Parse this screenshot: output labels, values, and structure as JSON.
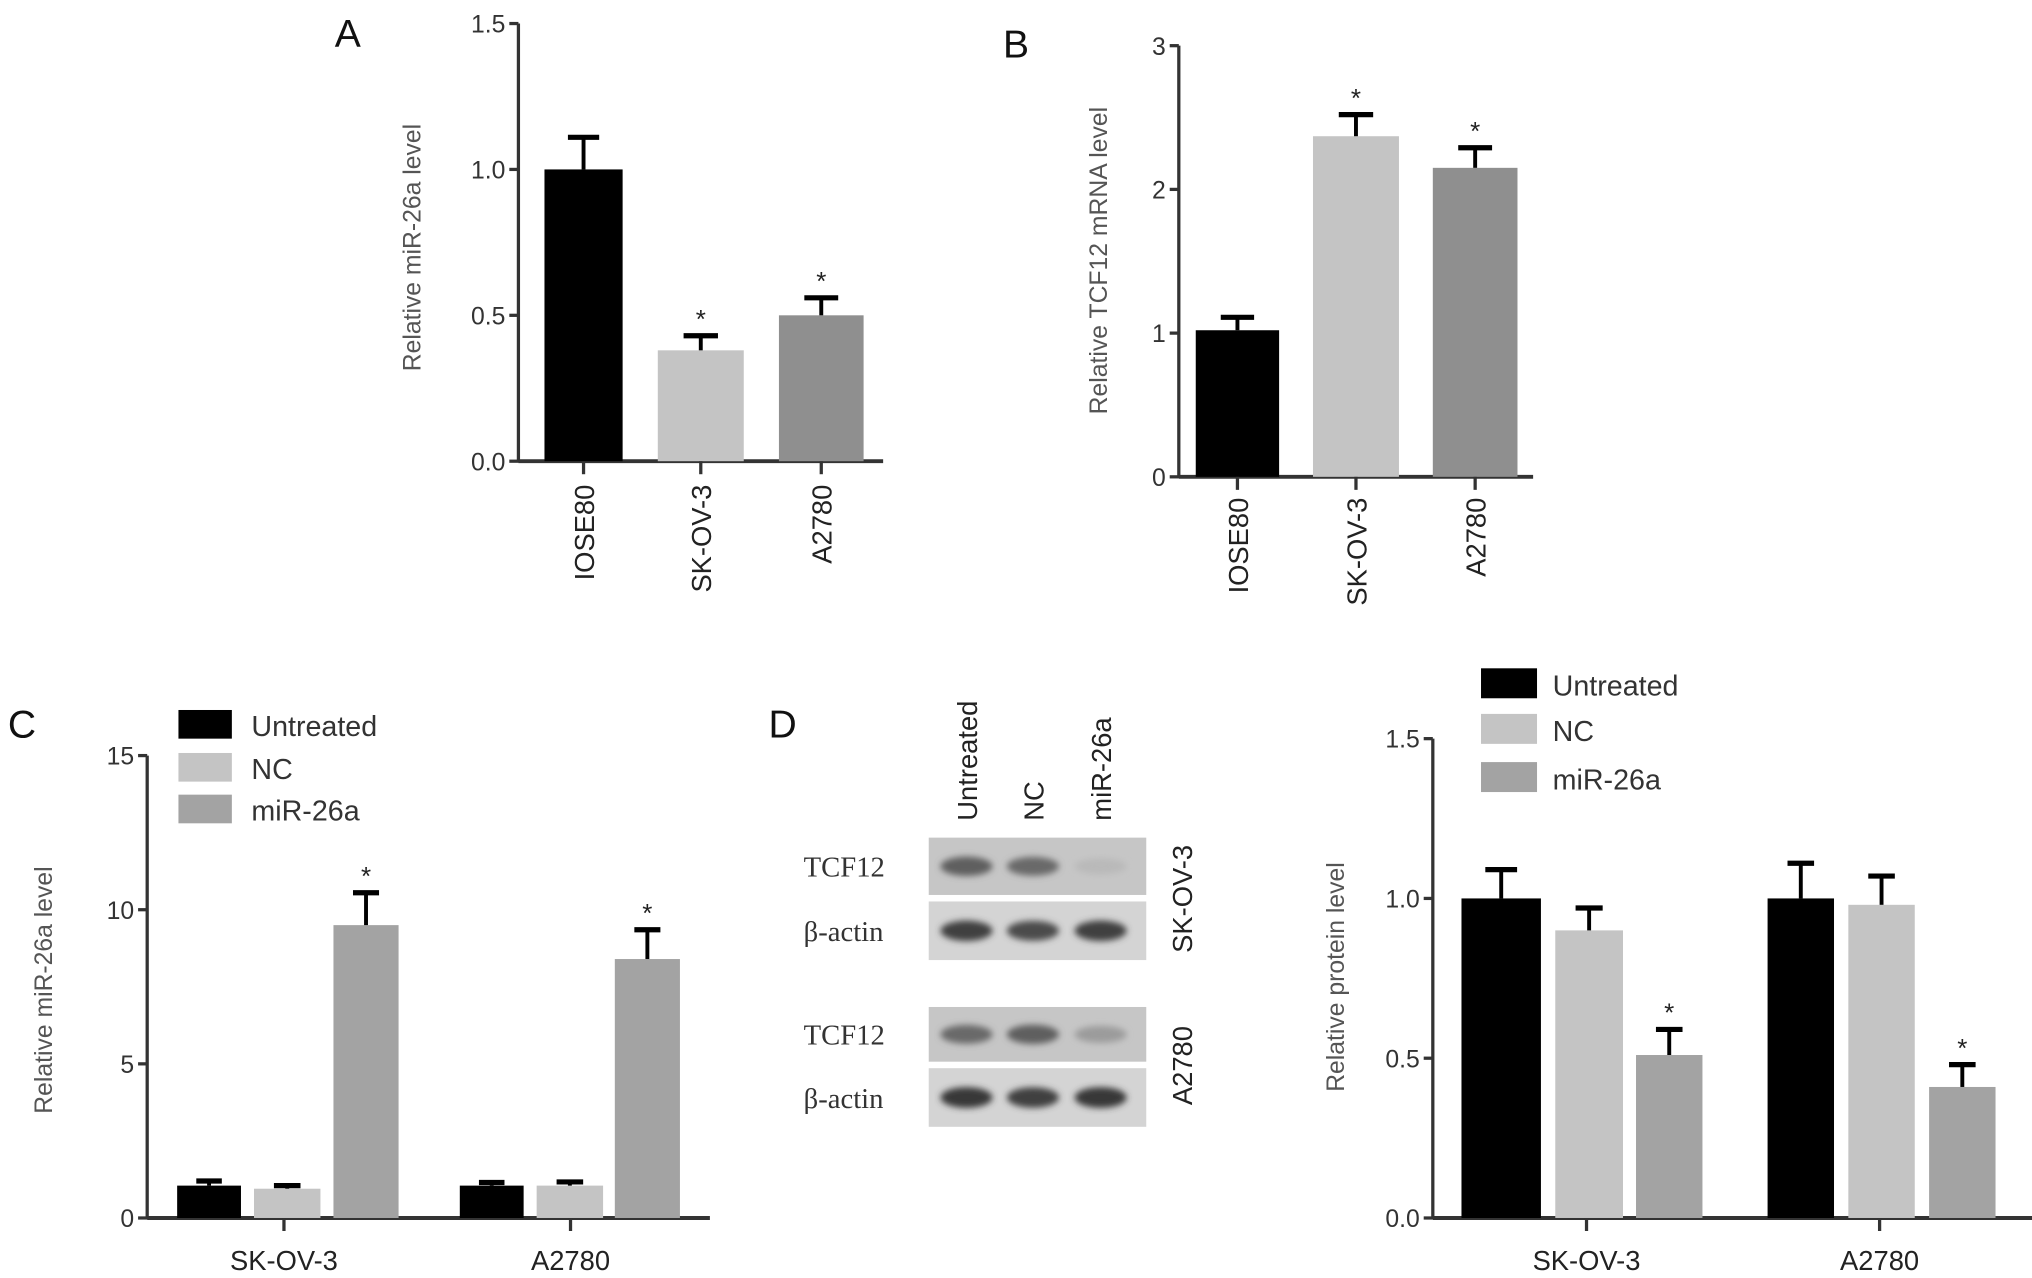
{
  "colors": {
    "black": "#000000",
    "light": "#c4c4c4",
    "dark": "#8f8f8f",
    "mid": "#a3a3a3"
  },
  "chart_data": [
    {
      "panel": "A",
      "type": "bar",
      "ylabel": "Relative miR-26a level",
      "categories": [
        "IOSE80",
        "SK-OV-3",
        "A2780"
      ],
      "values": [
        1.0,
        0.38,
        0.5
      ],
      "errors": [
        0.11,
        0.05,
        0.06
      ],
      "significant": [
        false,
        true,
        true
      ],
      "ylim": [
        0,
        1.5
      ],
      "yticks": [
        "0.0",
        "0.5",
        "1.0",
        "1.5"
      ],
      "bar_colors": [
        "#000000",
        "#c4c4c4",
        "#8f8f8f"
      ],
      "grid": false
    },
    {
      "panel": "B",
      "type": "bar",
      "ylabel": "Relative TCF12 mRNA level",
      "categories": [
        "IOSE80",
        "SK-OV-3",
        "A2780"
      ],
      "values": [
        1.02,
        2.37,
        2.15
      ],
      "errors": [
        0.09,
        0.15,
        0.14
      ],
      "significant": [
        false,
        true,
        true
      ],
      "ylim": [
        0,
        3
      ],
      "yticks": [
        "0",
        "1",
        "2",
        "3"
      ],
      "bar_colors": [
        "#000000",
        "#c4c4c4",
        "#8f8f8f"
      ],
      "grid": false
    },
    {
      "panel": "C",
      "type": "bar",
      "ylabel": "Relative miR-26a level",
      "categories": [
        "SK-OV-3",
        "A2780"
      ],
      "series": [
        {
          "name": "Untreated",
          "color": "#000000",
          "values": [
            1.05,
            1.05
          ],
          "errors": [
            0.15,
            0.1
          ],
          "significant": [
            false,
            false
          ]
        },
        {
          "name": "NC",
          "color": "#c4c4c4",
          "values": [
            0.95,
            1.05
          ],
          "errors": [
            0.1,
            0.12
          ],
          "significant": [
            false,
            false
          ]
        },
        {
          "name": "miR-26a",
          "color": "#a3a3a3",
          "values": [
            9.5,
            8.4
          ],
          "errors": [
            1.05,
            0.95
          ],
          "significant": [
            true,
            true
          ]
        }
      ],
      "ylim": [
        0,
        15
      ],
      "yticks": [
        "0",
        "5",
        "10",
        "15"
      ],
      "legend": "top-left",
      "grid": false
    },
    {
      "panel": "D",
      "type": "bar",
      "ylabel": "Relative protein level",
      "categories": [
        "SK-OV-3",
        "A2780"
      ],
      "series": [
        {
          "name": "Untreated",
          "color": "#000000",
          "values": [
            1.0,
            1.0
          ],
          "errors": [
            0.09,
            0.11
          ],
          "significant": [
            false,
            false
          ]
        },
        {
          "name": "NC",
          "color": "#c4c4c4",
          "values": [
            0.9,
            0.98
          ],
          "errors": [
            0.07,
            0.09
          ],
          "significant": [
            false,
            false
          ]
        },
        {
          "name": "miR-26a",
          "color": "#a3a3a3",
          "values": [
            0.51,
            0.41
          ],
          "errors": [
            0.08,
            0.07
          ],
          "significant": [
            true,
            true
          ]
        }
      ],
      "ylim": [
        0,
        1.5
      ],
      "yticks": [
        "0.0",
        "0.5",
        "1.0",
        "1.5"
      ],
      "legend": "top-left",
      "grid": false
    }
  ],
  "blot": {
    "lanes": [
      "Untreated",
      "NC",
      "miR-26a"
    ],
    "rows": [
      {
        "label": "TCF12",
        "intensity": [
          0.8,
          0.75,
          0.35
        ]
      },
      {
        "label": "β-actin",
        "intensity": [
          0.95,
          0.9,
          0.95
        ]
      },
      {
        "label": "TCF12",
        "intensity": [
          0.75,
          0.8,
          0.5
        ]
      },
      {
        "label": "β-actin",
        "intensity": [
          1.0,
          0.95,
          1.0
        ]
      }
    ],
    "cell_lines": [
      "SK-OV-3",
      "A2780"
    ]
  },
  "significance_marker": "*"
}
